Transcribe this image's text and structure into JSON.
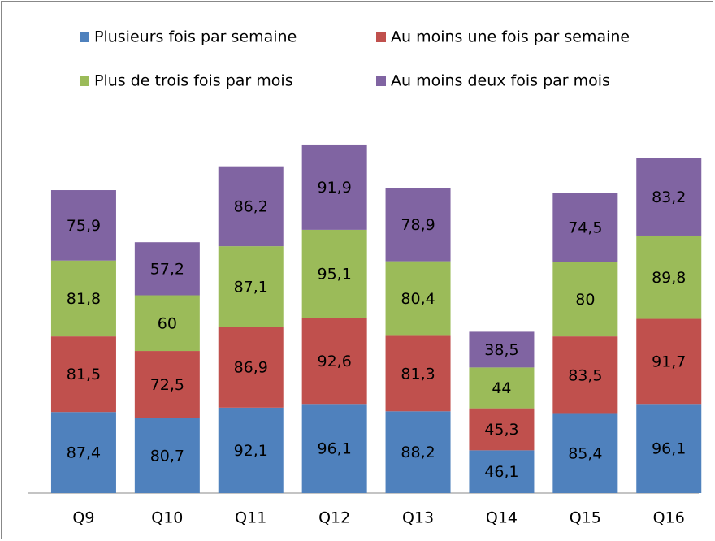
{
  "chart_data": {
    "type": "stacked-bar",
    "categories": [
      "Q9",
      "Q10",
      "Q11",
      "Q12",
      "Q13",
      "Q14",
      "Q15",
      "Q16"
    ],
    "series": [
      {
        "name": "Plusieurs fois par semaine",
        "color": "#4f81bd",
        "values": [
          87.4,
          80.7,
          92.1,
          96.1,
          88.2,
          46.1,
          85.4,
          96.1
        ],
        "value_labels": [
          "87,4",
          "80,7",
          "92,1",
          "96,1",
          "88,2",
          "46,1",
          "85,4",
          "96,1"
        ]
      },
      {
        "name": "Au moins une fois par semaine",
        "color": "#c0504d",
        "values": [
          81.5,
          72.5,
          86.9,
          92.6,
          81.3,
          45.3,
          83.5,
          91.7
        ],
        "value_labels": [
          "81,5",
          "72,5",
          "86,9",
          "92,6",
          "81,3",
          "45,3",
          "83,5",
          "91,7"
        ]
      },
      {
        "name": "Plus de trois fois par mois",
        "color": "#9bbb59",
        "values": [
          81.8,
          60,
          87.1,
          95.1,
          80.4,
          44,
          80,
          89.8
        ],
        "value_labels": [
          "81,8",
          "60",
          "87,1",
          "95,1",
          "80,4",
          "44",
          "80",
          "89,8"
        ]
      },
      {
        "name": "Au moins deux fois par mois",
        "color": "#8064a2",
        "values": [
          75.9,
          57.2,
          86.2,
          91.9,
          78.9,
          38.5,
          74.5,
          83.2
        ],
        "value_labels": [
          "75,9",
          "57,2",
          "86,2",
          "91,9",
          "78,9",
          "38,5",
          "74,5",
          "83,2"
        ]
      }
    ]
  }
}
